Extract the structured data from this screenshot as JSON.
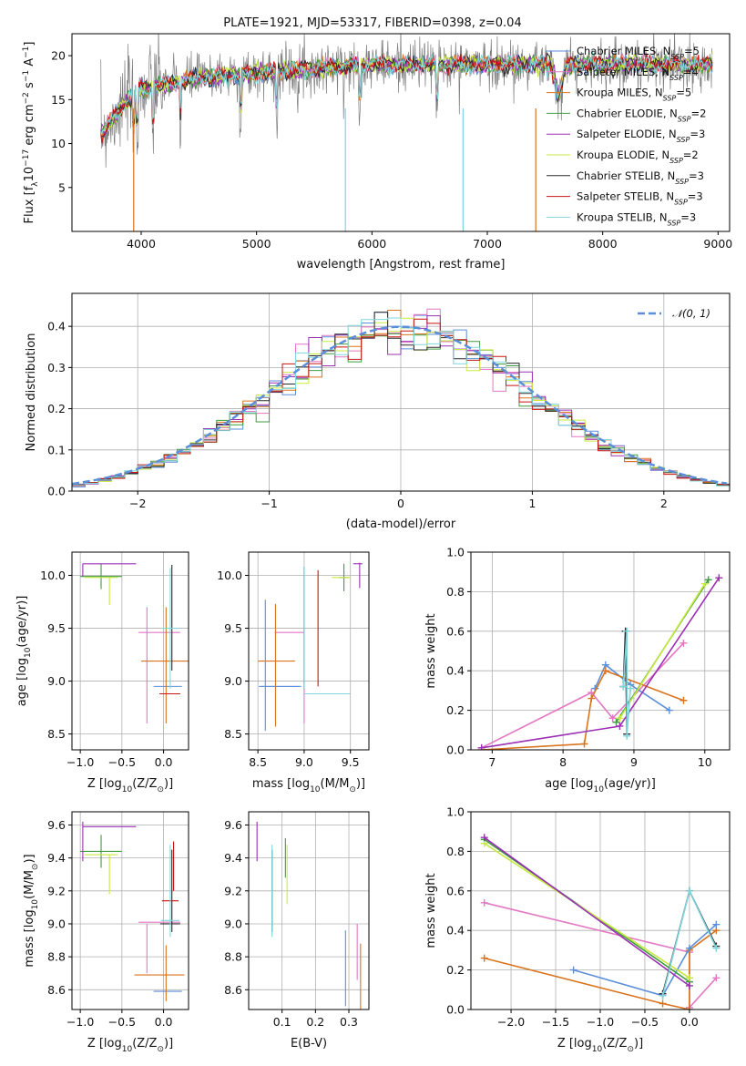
{
  "chart_data": [
    {
      "id": "spectrum",
      "type": "line",
      "title": "PLATE=1921, MJD=53317, FIBERID=0398, z=0.04",
      "xlabel": "wavelength [Angstrom, rest frame]",
      "ylabel_parts": [
        "Flux [f",
        "λ",
        "10",
        "−17",
        " erg cm",
        "−2",
        " s",
        "−1",
        " A",
        "−1",
        "]"
      ],
      "xlim": [
        3400,
        9100
      ],
      "ylim": [
        0,
        22.5
      ],
      "xticks": [
        4000,
        5000,
        6000,
        7000,
        8000,
        9000
      ],
      "yticks": [
        5,
        10,
        15,
        20
      ],
      "grid": false,
      "legend_position": "right",
      "data_color": "#7f7f7f",
      "data_range": [
        3650,
        8950
      ],
      "series": [
        {
          "name": "Chabrier MILES, N",
          "sub": "SSP",
          "tail": "=5",
          "color": "#5b8fd9"
        },
        {
          "name": "Salpeter MILES, N",
          "sub": "SSP",
          "tail": "=4",
          "color": "#e377c2"
        },
        {
          "name": "Kroupa MILES, N",
          "sub": "SSP",
          "tail": "=5",
          "color": "#d9731e"
        },
        {
          "name": "Chabrier ELODIE, N",
          "sub": "SSP",
          "tail": "=2",
          "color": "#3f9b3f"
        },
        {
          "name": "Salpeter ELODIE, N",
          "sub": "SSP",
          "tail": "=3",
          "color": "#9b30b5"
        },
        {
          "name": "Kroupa ELODIE, N",
          "sub": "SSP",
          "tail": "=2",
          "color": "#c7ea3f"
        },
        {
          "name": "Chabrier STELIB, N",
          "sub": "SSP",
          "tail": "=3",
          "color": "#2b2b2b"
        },
        {
          "name": "Salpeter STELIB, N",
          "sub": "SSP",
          "tail": "=3",
          "color": "#c81414"
        },
        {
          "name": "Kroupa STELIB, N",
          "sub": "SSP",
          "tail": "=3",
          "color": "#7fd6dc"
        }
      ]
    },
    {
      "id": "residuals",
      "type": "histogram",
      "xlabel": "(data-model)/error",
      "ylabel": "Normed distribution",
      "xlim": [
        -2.5,
        2.5
      ],
      "ylim": [
        0,
        0.48
      ],
      "xticks": [
        -2,
        -1,
        0,
        1,
        2
      ],
      "yticks": [
        0.0,
        0.1,
        0.2,
        0.3,
        0.4
      ],
      "grid": true,
      "bin_width": 0.1,
      "legend_position": "top-right",
      "normal_curve": {
        "label": "𝒩(0, 1)",
        "color": "#5b8fd9",
        "style": "dashed"
      }
    },
    {
      "id": "age_vs_Z",
      "type": "errorbar",
      "xlabel_parts": [
        "Z [log",
        "10",
        "(Z/Z",
        "⊙",
        ")]"
      ],
      "ylabel_parts": [
        "age  [log",
        "10",
        "(age/yr)]"
      ],
      "xlim": [
        -1.1,
        0.3
      ],
      "ylim": [
        8.35,
        10.22
      ],
      "xticks": [
        -1.0,
        -0.5,
        0.0
      ],
      "yticks": [
        8.5,
        9.0,
        9.5,
        10.0
      ],
      "grid": true,
      "points": [
        {
          "color": "#5b8fd9",
          "x": 0.05,
          "xerr": 0.17,
          "y": 8.95,
          "yerr": 0.0
        },
        {
          "color": "#e377c2",
          "x": -0.05,
          "xerr": 0.25,
          "y": 9.46,
          "yerr": 0.0
        },
        {
          "color": "#e377c2",
          "x": -0.2,
          "xerr": 0.0,
          "y": 9.15,
          "yerr": 0.55
        },
        {
          "color": "#d9731e",
          "x": 0.03,
          "xerr": 0.3,
          "y": 9.19,
          "yerr": 0.0
        },
        {
          "color": "#d9731e",
          "x": 0.03,
          "xerr": 0.0,
          "y": 9.15,
          "yerr": 0.55
        },
        {
          "color": "#3f9b3f",
          "x": -0.75,
          "xerr": 0.25,
          "y": 9.99,
          "yerr": 0.12
        },
        {
          "color": "#9b30b5",
          "x": -0.65,
          "xerr": 0.32,
          "y": 10.11,
          "yerr": 0.0
        },
        {
          "color": "#9b30b5",
          "x": -0.97,
          "xerr": 0.0,
          "y": 10.05,
          "yerr": 0.06
        },
        {
          "color": "#c7ea3f",
          "x": -0.75,
          "xerr": 0.2,
          "y": 9.98,
          "yerr": 0.0
        },
        {
          "color": "#c7ea3f",
          "x": -0.65,
          "xerr": 0.0,
          "y": 9.85,
          "yerr": 0.13
        },
        {
          "color": "#2b2b2b",
          "x": 0.08,
          "xerr": 0.12,
          "y": 8.88,
          "yerr": 0.0
        },
        {
          "color": "#2b2b2b",
          "x": 0.1,
          "xerr": 0.0,
          "y": 9.6,
          "yerr": 0.5
        },
        {
          "color": "#c81414",
          "x": 0.07,
          "xerr": 0.12,
          "y": 8.88,
          "yerr": 0.0
        },
        {
          "color": "#7fd6dc",
          "x": 0.08,
          "xerr": 0.1,
          "y": 9.5,
          "yerr": 0.57
        }
      ]
    },
    {
      "id": "age_vs_mass",
      "type": "errorbar",
      "xlabel_parts": [
        "mass [log",
        "10",
        "(M/M",
        "⊙",
        ")]"
      ],
      "xlim": [
        8.4,
        9.7
      ],
      "ylim": [
        8.35,
        10.22
      ],
      "xticks": [
        8.5,
        9.0,
        9.5
      ],
      "yticks": [
        8.5,
        9.0,
        9.5,
        10.0
      ],
      "grid": true,
      "points": [
        {
          "color": "#5b8fd9",
          "x": 8.73,
          "xerr": 0.22,
          "y": 8.95,
          "yerr": 0.0
        },
        {
          "color": "#5b8fd9",
          "x": 8.58,
          "xerr": 0.0,
          "y": 9.15,
          "yerr": 0.62
        },
        {
          "color": "#e377c2",
          "x": 8.84,
          "xerr": 0.16,
          "y": 9.46,
          "yerr": 0.0
        },
        {
          "color": "#e377c2",
          "x": 9.0,
          "xerr": 0.0,
          "y": 9.3,
          "yerr": 0.7
        },
        {
          "color": "#d9731e",
          "x": 8.7,
          "xerr": 0.2,
          "y": 9.19,
          "yerr": 0.0
        },
        {
          "color": "#d9731e",
          "x": 8.69,
          "xerr": 0.0,
          "y": 9.15,
          "yerr": 0.58
        },
        {
          "color": "#3f9b3f",
          "x": 9.43,
          "xerr": 0.05,
          "y": 9.98,
          "yerr": 0.13
        },
        {
          "color": "#9b30b5",
          "x": 9.58,
          "xerr": 0.05,
          "y": 10.11,
          "yerr": 0.0
        },
        {
          "color": "#9b30b5",
          "x": 9.6,
          "xerr": 0.0,
          "y": 10.0,
          "yerr": 0.12
        },
        {
          "color": "#c7ea3f",
          "x": 9.4,
          "xerr": 0.1,
          "y": 9.98,
          "yerr": 0.0
        },
        {
          "color": "#2b2b2b",
          "x": 9.0,
          "xerr": 0.0,
          "y": 9.5,
          "yerr": 0.58
        },
        {
          "color": "#c81414",
          "x": 9.15,
          "xerr": 0.0,
          "y": 9.5,
          "yerr": 0.55
        },
        {
          "color": "#c81414",
          "x": 9.25,
          "xerr": 0.25,
          "y": 8.88,
          "yerr": 0.0
        },
        {
          "color": "#7fd6dc",
          "x": 9.25,
          "xerr": 0.25,
          "y": 8.88,
          "yerr": 0.0
        },
        {
          "color": "#7fd6dc",
          "x": 9.0,
          "xerr": 0.0,
          "y": 9.5,
          "yerr": 0.58
        },
        {
          "color": "#5b8fd9",
          "x": 8.75,
          "xerr": 0.22,
          "y": 8.95,
          "yerr": 0.0
        }
      ]
    },
    {
      "id": "weight_vs_age",
      "type": "line",
      "xlabel_parts": [
        "age  [log",
        "10",
        "(age/yr)]"
      ],
      "ylabel": "mass weight",
      "xlim": [
        6.7,
        10.35
      ],
      "ylim": [
        0,
        1.0
      ],
      "xticks": [
        7,
        8,
        9,
        10
      ],
      "yticks": [
        0.0,
        0.2,
        0.4,
        0.6,
        0.8,
        1.0
      ],
      "grid": true,
      "series": [
        {
          "color": "#e377c2",
          "points": [
            [
              6.85,
              0.01
            ],
            [
              8.4,
              0.29
            ],
            [
              8.7,
              0.16
            ],
            [
              9.7,
              0.54
            ]
          ]
        },
        {
          "color": "#5b8fd9",
          "points": [
            [
              8.45,
              0.31
            ],
            [
              8.6,
              0.43
            ],
            [
              8.95,
              0.33
            ],
            [
              9.5,
              0.2
            ]
          ]
        },
        {
          "color": "#d9731e",
          "points": [
            [
              6.85,
              0.0
            ],
            [
              8.3,
              0.03
            ],
            [
              8.4,
              0.26
            ],
            [
              8.6,
              0.4
            ],
            [
              9.7,
              0.25
            ]
          ]
        },
        {
          "color": "#3f9b3f",
          "points": [
            [
              8.75,
              0.14
            ],
            [
              10.05,
              0.86
            ]
          ]
        },
        {
          "color": "#c7ea3f",
          "points": [
            [
              8.8,
              0.16
            ],
            [
              10.0,
              0.84
            ]
          ]
        },
        {
          "color": "#9b30b5",
          "points": [
            [
              6.85,
              0.01
            ],
            [
              8.8,
              0.12
            ],
            [
              10.2,
              0.87
            ]
          ]
        },
        {
          "color": "#2b2b2b",
          "points": [
            [
              8.85,
              0.32
            ],
            [
              8.88,
              0.6
            ],
            [
              8.9,
              0.08
            ]
          ]
        },
        {
          "color": "#7fd6dc",
          "points": [
            [
              8.85,
              0.32
            ],
            [
              8.9,
              0.6
            ],
            [
              8.9,
              0.07
            ],
            [
              8.95,
              0.31
            ]
          ]
        }
      ]
    },
    {
      "id": "mass_vs_Z",
      "type": "errorbar",
      "xlabel_parts": [
        "Z [log",
        "10",
        "(Z/Z",
        "⊙",
        ")]"
      ],
      "ylabel_parts": [
        "mass [log",
        "10",
        "(M/M",
        "⊙",
        ")]"
      ],
      "xlim": [
        -1.1,
        0.3
      ],
      "ylim": [
        8.48,
        9.68
      ],
      "xticks": [
        -1.0,
        -0.5,
        0.0
      ],
      "yticks": [
        8.6,
        8.8,
        9.0,
        9.2,
        9.4,
        9.6
      ],
      "grid": true,
      "points": [
        {
          "color": "#5b8fd9",
          "x": 0.05,
          "xerr": 0.17,
          "y": 8.59,
          "yerr": 0.0
        },
        {
          "color": "#e377c2",
          "x": -0.05,
          "xerr": 0.25,
          "y": 9.01,
          "yerr": 0.0
        },
        {
          "color": "#e377c2",
          "x": -0.2,
          "xerr": 0.0,
          "y": 8.85,
          "yerr": 0.15
        },
        {
          "color": "#d9731e",
          "x": -0.05,
          "xerr": 0.3,
          "y": 8.69,
          "yerr": 0.0
        },
        {
          "color": "#d9731e",
          "x": 0.03,
          "xerr": 0.0,
          "y": 8.7,
          "yerr": 0.17
        },
        {
          "color": "#3f9b3f",
          "x": -0.75,
          "xerr": 0.25,
          "y": 9.44,
          "yerr": 0.1
        },
        {
          "color": "#9b30b5",
          "x": -0.65,
          "xerr": 0.32,
          "y": 9.59,
          "yerr": 0.0
        },
        {
          "color": "#9b30b5",
          "x": -0.97,
          "xerr": 0.0,
          "y": 9.5,
          "yerr": 0.12
        },
        {
          "color": "#c7ea3f",
          "x": -0.75,
          "xerr": 0.2,
          "y": 9.42,
          "yerr": 0.0
        },
        {
          "color": "#c7ea3f",
          "x": -0.65,
          "xerr": 0.0,
          "y": 9.3,
          "yerr": 0.12
        },
        {
          "color": "#2b2b2b",
          "x": 0.08,
          "xerr": 0.12,
          "y": 9.0,
          "yerr": 0.0
        },
        {
          "color": "#2b2b2b",
          "x": 0.1,
          "xerr": 0.0,
          "y": 9.2,
          "yerr": 0.25
        },
        {
          "color": "#c81414",
          "x": 0.08,
          "xerr": 0.1,
          "y": 9.14,
          "yerr": 0.0
        },
        {
          "color": "#c81414",
          "x": 0.12,
          "xerr": 0.0,
          "y": 9.35,
          "yerr": 0.15
        },
        {
          "color": "#7fd6dc",
          "x": 0.08,
          "xerr": 0.11,
          "y": 9.02,
          "yerr": 0.0
        },
        {
          "color": "#7fd6dc",
          "x": 0.08,
          "xerr": 0.0,
          "y": 9.2,
          "yerr": 0.28
        }
      ]
    },
    {
      "id": "mass_vs_ebv",
      "type": "errorbar",
      "xlabel": "E(B-V)",
      "xlim": [
        0.0,
        0.36
      ],
      "ylim": [
        8.48,
        9.68
      ],
      "xticks": [
        0.1,
        0.2,
        0.3
      ],
      "yticks": [
        8.6,
        8.8,
        9.0,
        9.2,
        9.4,
        9.6
      ],
      "grid": true,
      "points": [
        {
          "color": "#9b30b5",
          "x": 0.025,
          "xerr": 0.0,
          "y": 9.5,
          "yerr": 0.12
        },
        {
          "color": "#2b2b2b",
          "x": 0.07,
          "xerr": 0.0,
          "y": 9.2,
          "yerr": 0.25
        },
        {
          "color": "#7fd6dc",
          "x": 0.07,
          "xerr": 0.0,
          "y": 9.2,
          "yerr": 0.28
        },
        {
          "color": "#3f9b3f",
          "x": 0.11,
          "xerr": 0.0,
          "y": 9.4,
          "yerr": 0.12
        },
        {
          "color": "#c7ea3f",
          "x": 0.115,
          "xerr": 0.0,
          "y": 9.3,
          "yerr": 0.18
        },
        {
          "color": "#5b8fd9",
          "x": 0.29,
          "xerr": 0.0,
          "y": 8.73,
          "yerr": 0.23
        },
        {
          "color": "#e377c2",
          "x": 0.325,
          "xerr": 0.0,
          "y": 8.83,
          "yerr": 0.17
        },
        {
          "color": "#d9731e",
          "x": 0.335,
          "xerr": 0.0,
          "y": 8.68,
          "yerr": 0.2
        }
      ]
    },
    {
      "id": "weight_vs_Z",
      "type": "line",
      "xlabel_parts": [
        "Z [log",
        "10",
        "(Z/Z",
        "⊙",
        ")]"
      ],
      "ylabel": "mass weight",
      "xlim": [
        -2.45,
        0.45
      ],
      "ylim": [
        0,
        1.0
      ],
      "xticks": [
        -2.0,
        -1.5,
        -1.0,
        -0.5,
        0.0
      ],
      "yticks": [
        0.0,
        0.2,
        0.4,
        0.6,
        0.8,
        1.0
      ],
      "grid": true,
      "series": [
        {
          "color": "#e377c2",
          "points": [
            [
              -2.3,
              0.54
            ],
            [
              0.0,
              0.29
            ],
            [
              0.0,
              0.01
            ],
            [
              0.3,
              0.16
            ]
          ]
        },
        {
          "color": "#d9731e",
          "points": [
            [
              -2.3,
              0.26
            ],
            [
              -0.3,
              0.03
            ],
            [
              0.0,
              0.0
            ],
            [
              0.0,
              0.3
            ],
            [
              0.3,
              0.4
            ]
          ]
        },
        {
          "color": "#5b8fd9",
          "points": [
            [
              -1.3,
              0.2
            ],
            [
              -0.3,
              0.07
            ],
            [
              0.0,
              0.31
            ],
            [
              0.3,
              0.43
            ]
          ]
        },
        {
          "color": "#3f9b3f",
          "points": [
            [
              -2.3,
              0.86
            ],
            [
              0.0,
              0.14
            ]
          ]
        },
        {
          "color": "#c7ea3f",
          "points": [
            [
              -2.3,
              0.84
            ],
            [
              0.0,
              0.16
            ]
          ]
        },
        {
          "color": "#9b30b5",
          "points": [
            [
              -2.3,
              0.87
            ],
            [
              0.0,
              0.12
            ]
          ]
        },
        {
          "color": "#2b2b2b",
          "points": [
            [
              -0.3,
              0.08
            ],
            [
              0.0,
              0.6
            ],
            [
              0.3,
              0.32
            ]
          ]
        },
        {
          "color": "#7fd6dc",
          "points": [
            [
              -0.3,
              0.07
            ],
            [
              0.0,
              0.6
            ],
            [
              0.3,
              0.31
            ]
          ]
        }
      ]
    }
  ]
}
